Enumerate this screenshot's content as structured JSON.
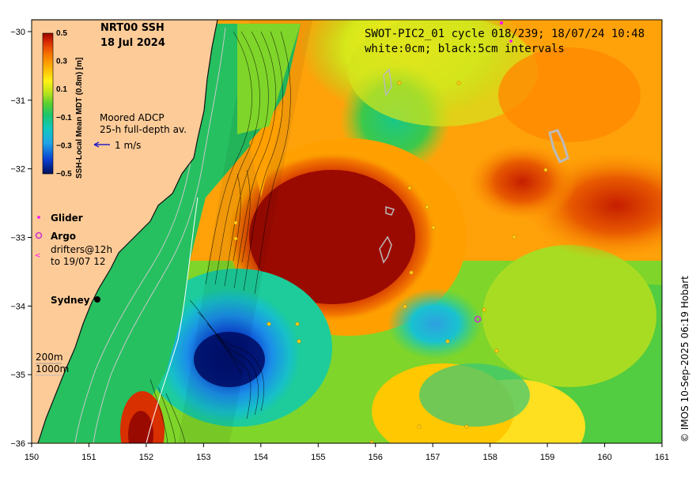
{
  "map": {
    "title_line1": "NRT00 SSH",
    "title_line2": "18 Jul 2024",
    "swot_line1": "SWOT-PIC2_01 cycle 018/239; 18/07/24 10:48",
    "swot_line2": "white:0cm; black:5cm intervals",
    "colorbar_label": "SSH-Local Mean MDT (0.8m) [m]",
    "colorbar_ticks": [
      "0.5",
      "0.3",
      "0.1",
      "−0.1",
      "−0.3",
      "−0.5"
    ],
    "colorbar_values": [
      0.5,
      0.3,
      0.1,
      -0.1,
      -0.3,
      -0.5
    ],
    "adcp_line1": "Moored ADCP",
    "adcp_line2": "25-h full-depth av.",
    "scale_label": "1 m/s",
    "glider_label": "Glider",
    "argo_label": "Argo",
    "drifters_line1": "drifters@12h",
    "drifters_line2": "to 19/07 12",
    "city_label": "Sydney",
    "isobath_200": "200m",
    "isobath_1000": "1000m",
    "credit": "© IMOS 10-Sep-2025 06:19 Hobart",
    "x_ticks": [
      "150",
      "151",
      "152",
      "153",
      "154",
      "155",
      "156",
      "157",
      "158",
      "159",
      "160",
      "161"
    ],
    "y_ticks": [
      "−30",
      "−31",
      "−32",
      "−33",
      "−34",
      "−35",
      "−36"
    ],
    "lon_range": [
      150,
      161
    ],
    "lat_range": [
      -36,
      -30
    ]
  },
  "colors": {
    "land": "#fdcb98",
    "ssh_high": "#9b0a00",
    "ssh_low": "#00106a",
    "glider": "#ff00ff",
    "argo": "#cc33cc",
    "arrow": "#0000cc"
  }
}
